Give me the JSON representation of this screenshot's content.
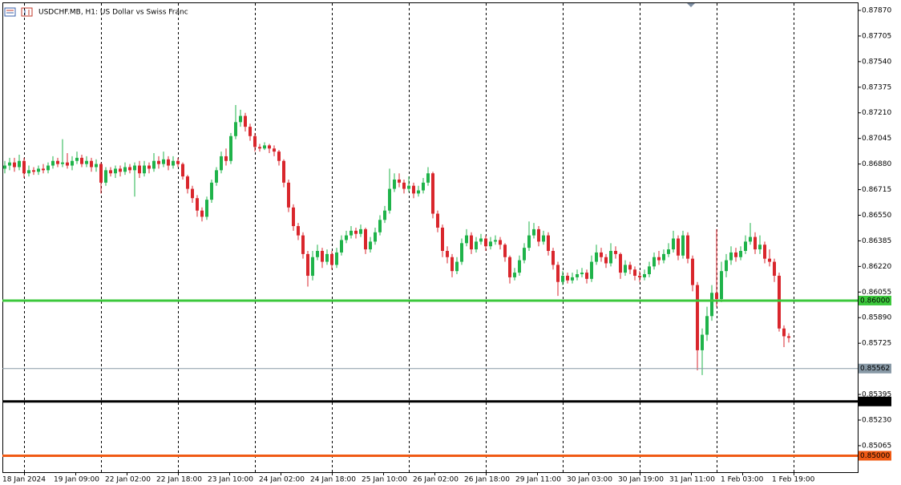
{
  "chart_data": {
    "type": "candlestick",
    "title": "USDCHF.MB, H1:  US Dollar vs Swiss Franc",
    "bull_color": "#1fb34a",
    "bear_color": "#d9262c",
    "ylim": [
      0.84889,
      0.87937
    ],
    "yticks": [
      {
        "value": 0.8787,
        "label": "0.87870"
      },
      {
        "value": 0.87705,
        "label": "0.87705"
      },
      {
        "value": 0.8754,
        "label": "0.87540"
      },
      {
        "value": 0.87375,
        "label": "0.87375"
      },
      {
        "value": 0.8721,
        "label": "0.87210"
      },
      {
        "value": 0.87045,
        "label": "0.87045"
      },
      {
        "value": 0.8688,
        "label": "0.86880"
      },
      {
        "value": 0.86715,
        "label": "0.86715"
      },
      {
        "value": 0.8655,
        "label": "0.86550"
      },
      {
        "value": 0.86385,
        "label": "0.86385"
      },
      {
        "value": 0.8622,
        "label": "0.86220"
      },
      {
        "value": 0.86055,
        "label": "0.86055"
      },
      {
        "value": 0.8589,
        "label": "0.85890"
      },
      {
        "value": 0.85725,
        "label": "0.85725"
      },
      {
        "value": 0.85395,
        "label": "0.85395"
      },
      {
        "value": 0.8523,
        "label": "0.85230"
      },
      {
        "value": 0.85065,
        "label": "0.85065"
      }
    ],
    "levels": [
      {
        "value": 0.86,
        "label": "0.86000",
        "color": "#3cc83c"
      },
      {
        "value": 0.85562,
        "label": "0.85562",
        "color": "#8899a6"
      },
      {
        "value": 0.8535,
        "label": "0.85350",
        "color": "#000000"
      },
      {
        "value": 0.85,
        "label": "0.85000",
        "color": "#f05a14"
      }
    ],
    "x_labels": [
      "18 Jan 2024",
      "19 Jan 09:00",
      "22 Jan 02:00",
      "22 Jan 18:00",
      "23 Jan 10:00",
      "24 Jan 02:00",
      "24 Jan 18:00",
      "25 Jan 10:00",
      "26 Jan 02:00",
      "26 Jan 18:00",
      "29 Jan 11:00",
      "30 Jan 03:00",
      "30 Jan 19:00",
      "31 Jan 11:00",
      "1 Feb 03:00",
      "1 Feb 19:00"
    ],
    "candles": [
      [
        0.8685,
        0.869,
        0.8682,
        0.8687
      ],
      [
        0.8687,
        0.8692,
        0.8684,
        0.8689
      ],
      [
        0.8689,
        0.8692,
        0.8683,
        0.8686
      ],
      [
        0.8686,
        0.8694,
        0.8684,
        0.869
      ],
      [
        0.869,
        0.8692,
        0.8679,
        0.8682
      ],
      [
        0.8682,
        0.8687,
        0.868,
        0.8684
      ],
      [
        0.8684,
        0.8686,
        0.8681,
        0.8683
      ],
      [
        0.8683,
        0.8687,
        0.8681,
        0.8685
      ],
      [
        0.8685,
        0.8688,
        0.8682,
        0.8684
      ],
      [
        0.8684,
        0.8689,
        0.8682,
        0.8687
      ],
      [
        0.8687,
        0.8693,
        0.8685,
        0.869
      ],
      [
        0.869,
        0.8692,
        0.8686,
        0.8688
      ],
      [
        0.8688,
        0.8704,
        0.8686,
        0.8689
      ],
      [
        0.8689,
        0.8695,
        0.8685,
        0.8687
      ],
      [
        0.8687,
        0.8693,
        0.8684,
        0.869
      ],
      [
        0.869,
        0.8696,
        0.8688,
        0.8692
      ],
      [
        0.8692,
        0.8694,
        0.8686,
        0.8688
      ],
      [
        0.8688,
        0.8693,
        0.8686,
        0.869
      ],
      [
        0.869,
        0.8692,
        0.8683,
        0.8686
      ],
      [
        0.8686,
        0.8691,
        0.8683,
        0.8688
      ],
      [
        0.8688,
        0.8689,
        0.8669,
        0.8676
      ],
      [
        0.8676,
        0.8686,
        0.8674,
        0.8684
      ],
      [
        0.8684,
        0.8686,
        0.868,
        0.8682
      ],
      [
        0.8682,
        0.8687,
        0.8679,
        0.8685
      ],
      [
        0.8685,
        0.8687,
        0.868,
        0.8683
      ],
      [
        0.8683,
        0.8689,
        0.8681,
        0.8686
      ],
      [
        0.8686,
        0.8688,
        0.8682,
        0.8684
      ],
      [
        0.8684,
        0.8689,
        0.8667,
        0.8687
      ],
      [
        0.8687,
        0.869,
        0.8679,
        0.8682
      ],
      [
        0.8682,
        0.869,
        0.868,
        0.8687
      ],
      [
        0.8687,
        0.8689,
        0.8682,
        0.8685
      ],
      [
        0.8685,
        0.8695,
        0.8683,
        0.869
      ],
      [
        0.869,
        0.8693,
        0.8685,
        0.8688
      ],
      [
        0.8688,
        0.8696,
        0.8686,
        0.8691
      ],
      [
        0.8691,
        0.8693,
        0.8684,
        0.8687
      ],
      [
        0.8687,
        0.8693,
        0.8685,
        0.869
      ],
      [
        0.869,
        0.8692,
        0.8686,
        0.8688
      ],
      [
        0.8688,
        0.8689,
        0.8678,
        0.868
      ],
      [
        0.868,
        0.8681,
        0.8669,
        0.8672
      ],
      [
        0.8672,
        0.8674,
        0.8663,
        0.8666
      ],
      [
        0.8666,
        0.8668,
        0.8654,
        0.8658
      ],
      [
        0.8658,
        0.866,
        0.8651,
        0.8654
      ],
      [
        0.8654,
        0.8667,
        0.8652,
        0.8665
      ],
      [
        0.8665,
        0.8678,
        0.8663,
        0.8676
      ],
      [
        0.8676,
        0.8686,
        0.8674,
        0.8684
      ],
      [
        0.8684,
        0.8696,
        0.8682,
        0.8693
      ],
      [
        0.8693,
        0.8698,
        0.8687,
        0.869
      ],
      [
        0.869,
        0.8708,
        0.8688,
        0.8706
      ],
      [
        0.8706,
        0.8726,
        0.8704,
        0.8715
      ],
      [
        0.8715,
        0.8723,
        0.8712,
        0.8719
      ],
      [
        0.8719,
        0.8721,
        0.8709,
        0.8712
      ],
      [
        0.8712,
        0.8714,
        0.8703,
        0.8706
      ],
      [
        0.8706,
        0.8708,
        0.8696,
        0.8699
      ],
      [
        0.8699,
        0.8701,
        0.8696,
        0.8698
      ],
      [
        0.8698,
        0.8702,
        0.8697,
        0.87
      ],
      [
        0.87,
        0.8701,
        0.8695,
        0.8698
      ],
      [
        0.8698,
        0.87,
        0.8693,
        0.8696
      ],
      [
        0.8696,
        0.8697,
        0.8687,
        0.869
      ],
      [
        0.869,
        0.8691,
        0.8673,
        0.8676
      ],
      [
        0.8676,
        0.8678,
        0.8657,
        0.866
      ],
      [
        0.866,
        0.8662,
        0.8645,
        0.8648
      ],
      [
        0.8648,
        0.865,
        0.8639,
        0.8642
      ],
      [
        0.8642,
        0.8644,
        0.8627,
        0.863
      ],
      [
        0.863,
        0.8632,
        0.8609,
        0.8616
      ],
      [
        0.8616,
        0.8632,
        0.8613,
        0.8628
      ],
      [
        0.8628,
        0.8636,
        0.8626,
        0.8632
      ],
      [
        0.8632,
        0.8634,
        0.8621,
        0.8625
      ],
      [
        0.8625,
        0.8633,
        0.8623,
        0.863
      ],
      [
        0.863,
        0.8632,
        0.862,
        0.8623
      ],
      [
        0.8623,
        0.8634,
        0.8621,
        0.8631
      ],
      [
        0.8631,
        0.8642,
        0.8629,
        0.8639
      ],
      [
        0.8639,
        0.8645,
        0.8637,
        0.8642
      ],
      [
        0.8642,
        0.8648,
        0.864,
        0.8645
      ],
      [
        0.8645,
        0.8647,
        0.864,
        0.8643
      ],
      [
        0.8643,
        0.8649,
        0.8641,
        0.8646
      ],
      [
        0.8646,
        0.8647,
        0.863,
        0.8633
      ],
      [
        0.8633,
        0.8641,
        0.8631,
        0.8638
      ],
      [
        0.8638,
        0.8647,
        0.8636,
        0.8644
      ],
      [
        0.8644,
        0.8655,
        0.8642,
        0.8652
      ],
      [
        0.8652,
        0.8661,
        0.865,
        0.8658
      ],
      [
        0.8658,
        0.8685,
        0.8656,
        0.8672
      ],
      [
        0.8672,
        0.8682,
        0.867,
        0.8678
      ],
      [
        0.8678,
        0.8682,
        0.8673,
        0.8676
      ],
      [
        0.8676,
        0.8678,
        0.8669,
        0.8672
      ],
      [
        0.8672,
        0.868,
        0.867,
        0.8674
      ],
      [
        0.8674,
        0.8676,
        0.8666,
        0.8669
      ],
      [
        0.8669,
        0.8674,
        0.8667,
        0.8671
      ],
      [
        0.8671,
        0.8679,
        0.8669,
        0.8676
      ],
      [
        0.8676,
        0.8686,
        0.8674,
        0.8682
      ],
      [
        0.8682,
        0.8683,
        0.8653,
        0.8656
      ],
      [
        0.8656,
        0.8658,
        0.8644,
        0.8647
      ],
      [
        0.8647,
        0.8649,
        0.8628,
        0.8632
      ],
      [
        0.8632,
        0.8635,
        0.8624,
        0.8628
      ],
      [
        0.8628,
        0.863,
        0.8615,
        0.8619
      ],
      [
        0.8619,
        0.8628,
        0.8617,
        0.8625
      ],
      [
        0.8625,
        0.864,
        0.8623,
        0.8637
      ],
      [
        0.8637,
        0.8646,
        0.8635,
        0.8642
      ],
      [
        0.8642,
        0.8644,
        0.863,
        0.8633
      ],
      [
        0.8633,
        0.8641,
        0.8631,
        0.8638
      ],
      [
        0.8638,
        0.8643,
        0.8636,
        0.864
      ],
      [
        0.864,
        0.8642,
        0.8632,
        0.8635
      ],
      [
        0.8635,
        0.8641,
        0.8633,
        0.8638
      ],
      [
        0.8638,
        0.8642,
        0.8636,
        0.8639
      ],
      [
        0.8639,
        0.8641,
        0.8633,
        0.8636
      ],
      [
        0.8636,
        0.8637,
        0.8625,
        0.8628
      ],
      [
        0.8628,
        0.8629,
        0.8611,
        0.8615
      ],
      [
        0.8615,
        0.8621,
        0.8613,
        0.8618
      ],
      [
        0.8618,
        0.8629,
        0.8616,
        0.8626
      ],
      [
        0.8626,
        0.8637,
        0.8624,
        0.8634
      ],
      [
        0.8634,
        0.8651,
        0.8632,
        0.8642
      ],
      [
        0.8642,
        0.865,
        0.864,
        0.8646
      ],
      [
        0.8646,
        0.8648,
        0.8635,
        0.8638
      ],
      [
        0.8638,
        0.8645,
        0.8636,
        0.8642
      ],
      [
        0.8642,
        0.8644,
        0.8629,
        0.8632
      ],
      [
        0.8632,
        0.8634,
        0.862,
        0.8623
      ],
      [
        0.8623,
        0.8625,
        0.8603,
        0.8612
      ],
      [
        0.8612,
        0.8619,
        0.861,
        0.8616
      ],
      [
        0.8616,
        0.8618,
        0.8611,
        0.8613
      ],
      [
        0.8613,
        0.8618,
        0.8611,
        0.8615
      ],
      [
        0.8615,
        0.862,
        0.8613,
        0.8617
      ],
      [
        0.8617,
        0.8621,
        0.8615,
        0.8618
      ],
      [
        0.8618,
        0.862,
        0.8611,
        0.8614
      ],
      [
        0.8614,
        0.8629,
        0.8612,
        0.8625
      ],
      [
        0.8625,
        0.8636,
        0.8623,
        0.8631
      ],
      [
        0.8631,
        0.8634,
        0.8625,
        0.8628
      ],
      [
        0.8628,
        0.863,
        0.8621,
        0.8624
      ],
      [
        0.8624,
        0.8637,
        0.8622,
        0.8632
      ],
      [
        0.8632,
        0.8635,
        0.8627,
        0.863
      ],
      [
        0.863,
        0.8631,
        0.8614,
        0.8618
      ],
      [
        0.8618,
        0.8626,
        0.8616,
        0.8623
      ],
      [
        0.8623,
        0.8625,
        0.8617,
        0.862
      ],
      [
        0.862,
        0.8622,
        0.8613,
        0.8616
      ],
      [
        0.8616,
        0.8619,
        0.8612,
        0.8615
      ],
      [
        0.8615,
        0.862,
        0.8613,
        0.8617
      ],
      [
        0.8617,
        0.8625,
        0.8615,
        0.8622
      ],
      [
        0.8622,
        0.8631,
        0.862,
        0.8628
      ],
      [
        0.8628,
        0.8632,
        0.8623,
        0.8626
      ],
      [
        0.8626,
        0.8633,
        0.8624,
        0.863
      ],
      [
        0.863,
        0.8637,
        0.8628,
        0.8633
      ],
      [
        0.8633,
        0.8645,
        0.8631,
        0.864
      ],
      [
        0.864,
        0.8642,
        0.8626,
        0.8629
      ],
      [
        0.8629,
        0.8645,
        0.8627,
        0.8642
      ],
      [
        0.8642,
        0.8644,
        0.8624,
        0.8627
      ],
      [
        0.8627,
        0.8629,
        0.8606,
        0.861
      ],
      [
        0.861,
        0.8612,
        0.8555,
        0.8568
      ],
      [
        0.8568,
        0.8582,
        0.8552,
        0.8578
      ],
      [
        0.8578,
        0.8596,
        0.8574,
        0.859
      ],
      [
        0.859,
        0.861,
        0.8587,
        0.8605
      ],
      [
        0.8605,
        0.8646,
        0.8596,
        0.8601
      ],
      [
        0.8601,
        0.8625,
        0.8599,
        0.8619
      ],
      [
        0.8619,
        0.863,
        0.8615,
        0.8626
      ],
      [
        0.8626,
        0.8635,
        0.8623,
        0.8631
      ],
      [
        0.8631,
        0.8634,
        0.8625,
        0.8628
      ],
      [
        0.8628,
        0.8635,
        0.8626,
        0.8632
      ],
      [
        0.8632,
        0.8642,
        0.863,
        0.8638
      ],
      [
        0.8638,
        0.865,
        0.8636,
        0.8641
      ],
      [
        0.8641,
        0.8644,
        0.863,
        0.8633
      ],
      [
        0.8633,
        0.8642,
        0.863,
        0.8636
      ],
      [
        0.8636,
        0.8638,
        0.8624,
        0.8627
      ],
      [
        0.8627,
        0.8633,
        0.8622,
        0.8625
      ],
      [
        0.8625,
        0.8627,
        0.8612,
        0.8616
      ],
      [
        0.8616,
        0.8618,
        0.858,
        0.8582
      ],
      [
        0.8582,
        0.8584,
        0.857,
        0.8577
      ],
      [
        0.8577,
        0.8579,
        0.8573,
        0.8576
      ]
    ]
  }
}
